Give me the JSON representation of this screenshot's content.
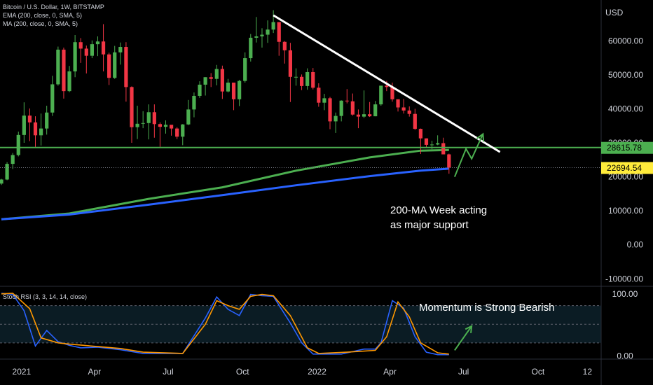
{
  "legend": {
    "title": "Bitcoin / U.S. Dollar, 1W, BITSTAMP",
    "ema": "EMA (200, close, 0, SMA, 5)",
    "ma": "MA (200, close, 0, SMA, 5)",
    "stoch": "Stoch RSI (3, 3, 14, 14, close)"
  },
  "currency_label": "USD",
  "annotations": {
    "support_line1": "200-MA Week acting",
    "support_line2": "as major support",
    "momentum": "Momentum is Strong Bearish"
  },
  "colors": {
    "up": "#4caf50",
    "down": "#f23645",
    "ema": "#4caf50",
    "ma": "#2962ff",
    "stoch_k": "#2962ff",
    "stoch_d": "#ff9800",
    "support_level": "#4caf50",
    "price_badge": "#ffeb3b",
    "trendline": "#ffffff"
  },
  "chart_data": [
    {
      "type": "candlestick",
      "title": "Bitcoin / U.S. Dollar, 1W, BITSTAMP",
      "ylabel": "USD",
      "ylim": [
        -12000,
        72000
      ],
      "xlim": [
        "2020-12-07",
        "2022-12-18"
      ],
      "y_ticks": [
        "60000.00",
        "50000.00",
        "40000.00",
        "30000.00",
        "20000.00",
        "10000.00",
        "0.00",
        "-10000.00"
      ],
      "x_ticks": [
        "2021",
        "Apr",
        "Jul",
        "Oct",
        "2022",
        "Apr",
        "Jul",
        "Oct",
        "12"
      ],
      "price_labels": [
        {
          "value": 28615.78,
          "text": "28615.78",
          "color": "#4caf50"
        },
        {
          "value": 22694.54,
          "text": "22694.54",
          "color": "#ffeb3b"
        }
      ],
      "horizontal_level": 28615.78,
      "trendline": {
        "from": [
          "2021-11-08",
          67500
        ],
        "to": [
          "2022-08-15",
          27300
        ]
      },
      "arrow_path": [
        [
          "2022-06-20",
          20000
        ],
        [
          "2022-07-04",
          28200
        ],
        [
          "2022-07-11",
          25300
        ],
        [
          "2022-07-25",
          32600
        ]
      ],
      "candles": [
        {
          "d": "2020-12-07",
          "o": 18000,
          "h": 19400,
          "l": 17600,
          "c": 19200
        },
        {
          "d": "2020-12-14",
          "o": 19200,
          "h": 24300,
          "l": 19000,
          "c": 23800
        },
        {
          "d": "2020-12-21",
          "o": 23800,
          "h": 27000,
          "l": 22300,
          "c": 26400
        },
        {
          "d": "2020-12-28",
          "o": 26400,
          "h": 33300,
          "l": 26000,
          "c": 32300
        },
        {
          "d": "2021-01-04",
          "o": 32300,
          "h": 41900,
          "l": 30000,
          "c": 38000
        },
        {
          "d": "2021-01-11",
          "o": 38000,
          "h": 40100,
          "l": 30500,
          "c": 36000
        },
        {
          "d": "2021-01-18",
          "o": 36000,
          "h": 37800,
          "l": 28800,
          "c": 32200
        },
        {
          "d": "2021-01-25",
          "o": 32200,
          "h": 38600,
          "l": 29200,
          "c": 34200
        },
        {
          "d": "2021-02-01",
          "o": 34200,
          "h": 40900,
          "l": 32400,
          "c": 38900
        },
        {
          "d": "2021-02-08",
          "o": 38900,
          "h": 49700,
          "l": 37900,
          "c": 47200
        },
        {
          "d": "2021-02-15",
          "o": 47200,
          "h": 58300,
          "l": 46800,
          "c": 57400
        },
        {
          "d": "2021-02-22",
          "o": 57400,
          "h": 58000,
          "l": 43000,
          "c": 45200
        },
        {
          "d": "2021-03-01",
          "o": 45200,
          "h": 52600,
          "l": 44900,
          "c": 51000
        },
        {
          "d": "2021-03-08",
          "o": 51000,
          "h": 61700,
          "l": 49300,
          "c": 59600
        },
        {
          "d": "2021-03-15",
          "o": 59600,
          "h": 60800,
          "l": 53500,
          "c": 57700
        },
        {
          "d": "2021-03-22",
          "o": 57700,
          "h": 58600,
          "l": 50400,
          "c": 55600
        },
        {
          "d": "2021-03-29",
          "o": 55600,
          "h": 60100,
          "l": 54900,
          "c": 59000
        },
        {
          "d": "2021-04-05",
          "o": 59000,
          "h": 61300,
          "l": 55500,
          "c": 59800
        },
        {
          "d": "2021-04-12",
          "o": 59800,
          "h": 64900,
          "l": 51000,
          "c": 56000
        },
        {
          "d": "2021-04-19",
          "o": 56000,
          "h": 56500,
          "l": 47000,
          "c": 49100
        },
        {
          "d": "2021-04-26",
          "o": 49100,
          "h": 58500,
          "l": 48800,
          "c": 56600
        },
        {
          "d": "2021-05-03",
          "o": 56600,
          "h": 59500,
          "l": 53000,
          "c": 58200
        },
        {
          "d": "2021-05-10",
          "o": 58200,
          "h": 59600,
          "l": 42100,
          "c": 46400
        },
        {
          "d": "2021-05-17",
          "o": 46400,
          "h": 46600,
          "l": 30000,
          "c": 34600
        },
        {
          "d": "2021-05-24",
          "o": 34600,
          "h": 40900,
          "l": 31100,
          "c": 35600
        },
        {
          "d": "2021-05-31",
          "o": 35600,
          "h": 39300,
          "l": 34300,
          "c": 35800
        },
        {
          "d": "2021-06-07",
          "o": 35800,
          "h": 41300,
          "l": 31000,
          "c": 39000
        },
        {
          "d": "2021-06-14",
          "o": 39000,
          "h": 41300,
          "l": 31500,
          "c": 35500
        },
        {
          "d": "2021-06-21",
          "o": 35500,
          "h": 36000,
          "l": 28800,
          "c": 34700
        },
        {
          "d": "2021-06-28",
          "o": 34700,
          "h": 36600,
          "l": 32700,
          "c": 35300
        },
        {
          "d": "2021-07-05",
          "o": 35300,
          "h": 35100,
          "l": 32100,
          "c": 34200
        },
        {
          "d": "2021-07-12",
          "o": 34200,
          "h": 34600,
          "l": 31100,
          "c": 31800
        },
        {
          "d": "2021-07-19",
          "o": 31800,
          "h": 35500,
          "l": 29300,
          "c": 35400
        },
        {
          "d": "2021-07-26",
          "o": 35400,
          "h": 42600,
          "l": 35200,
          "c": 39800
        },
        {
          "d": "2021-08-02",
          "o": 39800,
          "h": 44800,
          "l": 37500,
          "c": 43800
        },
        {
          "d": "2021-08-09",
          "o": 43800,
          "h": 48100,
          "l": 43200,
          "c": 47100
        },
        {
          "d": "2021-08-16",
          "o": 47100,
          "h": 49300,
          "l": 43900,
          "c": 49300
        },
        {
          "d": "2021-08-23",
          "o": 49300,
          "h": 50500,
          "l": 46400,
          "c": 48800
        },
        {
          "d": "2021-08-30",
          "o": 48800,
          "h": 52900,
          "l": 46900,
          "c": 51700
        },
        {
          "d": "2021-09-06",
          "o": 51700,
          "h": 52700,
          "l": 42900,
          "c": 45100
        },
        {
          "d": "2021-09-13",
          "o": 45100,
          "h": 48800,
          "l": 44800,
          "c": 47700
        },
        {
          "d": "2021-09-20",
          "o": 47700,
          "h": 47700,
          "l": 39600,
          "c": 42800
        },
        {
          "d": "2021-09-27",
          "o": 42800,
          "h": 48500,
          "l": 40800,
          "c": 48200
        },
        {
          "d": "2021-10-04",
          "o": 48200,
          "h": 56600,
          "l": 47700,
          "c": 54900
        },
        {
          "d": "2021-10-11",
          "o": 54900,
          "h": 62000,
          "l": 53900,
          "c": 60900
        },
        {
          "d": "2021-10-18",
          "o": 60900,
          "h": 67000,
          "l": 59500,
          "c": 61300
        },
        {
          "d": "2021-10-25",
          "o": 61300,
          "h": 63700,
          "l": 58000,
          "c": 61800
        },
        {
          "d": "2021-11-01",
          "o": 61800,
          "h": 66000,
          "l": 59400,
          "c": 63300
        },
        {
          "d": "2021-11-08",
          "o": 63300,
          "h": 69000,
          "l": 62300,
          "c": 65500
        },
        {
          "d": "2021-11-15",
          "o": 65500,
          "h": 65500,
          "l": 55600,
          "c": 59700
        },
        {
          "d": "2021-11-22",
          "o": 59700,
          "h": 59900,
          "l": 53300,
          "c": 57200
        },
        {
          "d": "2021-11-29",
          "o": 57200,
          "h": 59400,
          "l": 42000,
          "c": 49400
        },
        {
          "d": "2021-12-06",
          "o": 49400,
          "h": 51900,
          "l": 46800,
          "c": 49400
        },
        {
          "d": "2021-12-13",
          "o": 49400,
          "h": 50100,
          "l": 45500,
          "c": 46700
        },
        {
          "d": "2021-12-20",
          "o": 46700,
          "h": 51900,
          "l": 45600,
          "c": 50800
        },
        {
          "d": "2021-12-27",
          "o": 50800,
          "h": 52000,
          "l": 45700,
          "c": 46200
        },
        {
          "d": "2022-01-03",
          "o": 46200,
          "h": 47500,
          "l": 40600,
          "c": 41800
        },
        {
          "d": "2022-01-10",
          "o": 41800,
          "h": 44400,
          "l": 39600,
          "c": 43100
        },
        {
          "d": "2022-01-17",
          "o": 43100,
          "h": 43500,
          "l": 34000,
          "c": 36300
        },
        {
          "d": "2022-01-24",
          "o": 36300,
          "h": 38900,
          "l": 32900,
          "c": 37900
        },
        {
          "d": "2022-01-31",
          "o": 37900,
          "h": 42500,
          "l": 36300,
          "c": 42400
        },
        {
          "d": "2022-02-07",
          "o": 42400,
          "h": 45800,
          "l": 41600,
          "c": 42200
        },
        {
          "d": "2022-02-14",
          "o": 42200,
          "h": 44500,
          "l": 38000,
          "c": 38300
        },
        {
          "d": "2022-02-21",
          "o": 38300,
          "h": 39800,
          "l": 34300,
          "c": 37700
        },
        {
          "d": "2022-02-28",
          "o": 37700,
          "h": 45400,
          "l": 37300,
          "c": 38400
        },
        {
          "d": "2022-03-07",
          "o": 38400,
          "h": 42000,
          "l": 37600,
          "c": 37800
        },
        {
          "d": "2022-03-14",
          "o": 37800,
          "h": 42300,
          "l": 37800,
          "c": 41300
        },
        {
          "d": "2022-03-21",
          "o": 41300,
          "h": 46800,
          "l": 40900,
          "c": 46800
        },
        {
          "d": "2022-03-28",
          "o": 46800,
          "h": 48200,
          "l": 45200,
          "c": 46400
        },
        {
          "d": "2022-04-04",
          "o": 46400,
          "h": 47700,
          "l": 42100,
          "c": 42800
        },
        {
          "d": "2022-04-11",
          "o": 42800,
          "h": 42400,
          "l": 39200,
          "c": 40400
        },
        {
          "d": "2022-04-18",
          "o": 40400,
          "h": 42900,
          "l": 38600,
          "c": 39500
        },
        {
          "d": "2022-04-25",
          "o": 39500,
          "h": 40700,
          "l": 37700,
          "c": 38500
        },
        {
          "d": "2022-05-02",
          "o": 38500,
          "h": 40000,
          "l": 33800,
          "c": 34100
        },
        {
          "d": "2022-05-09",
          "o": 34100,
          "h": 34200,
          "l": 26700,
          "c": 31300
        },
        {
          "d": "2022-05-16",
          "o": 31300,
          "h": 31300,
          "l": 28700,
          "c": 29400
        },
        {
          "d": "2022-05-23",
          "o": 29400,
          "h": 30600,
          "l": 28100,
          "c": 29500
        },
        {
          "d": "2022-05-30",
          "o": 29500,
          "h": 32200,
          "l": 29300,
          "c": 29900
        },
        {
          "d": "2022-06-06",
          "o": 29900,
          "h": 31500,
          "l": 26600,
          "c": 26600
        },
        {
          "d": "2022-06-13",
          "o": 26600,
          "h": 26800,
          "l": 20900,
          "c": 22700
        }
      ],
      "ema200_points": [
        [
          "2020-12-07",
          7500
        ],
        [
          "2021-03-01",
          9200
        ],
        [
          "2021-06-07",
          13500
        ],
        [
          "2021-09-06",
          16900
        ],
        [
          "2021-12-06",
          21800
        ],
        [
          "2022-03-07",
          25700
        ],
        [
          "2022-05-09",
          27700
        ],
        [
          "2022-06-13",
          27900
        ]
      ],
      "ma200_points": [
        [
          "2020-12-07",
          7500
        ],
        [
          "2021-03-01",
          8900
        ],
        [
          "2021-06-07",
          11800
        ],
        [
          "2021-09-06",
          14600
        ],
        [
          "2021-12-06",
          17500
        ],
        [
          "2022-03-07",
          20200
        ],
        [
          "2022-05-09",
          21800
        ],
        [
          "2022-06-13",
          22400
        ]
      ]
    },
    {
      "type": "line",
      "title": "Stoch RSI (3, 3, 14, 14, close)",
      "ylim": [
        -5,
        110
      ],
      "y_ticks": [
        "100.00",
        "0.00"
      ],
      "bands": [
        20,
        50,
        80
      ],
      "series": [
        {
          "name": "K",
          "color": "#2962ff",
          "points": [
            [
              "2020-12-07",
              100
            ],
            [
              "2020-12-21",
              98
            ],
            [
              "2021-01-04",
              72
            ],
            [
              "2021-01-18",
              15
            ],
            [
              "2021-02-01",
              40
            ],
            [
              "2021-02-15",
              22
            ],
            [
              "2021-03-01",
              16
            ],
            [
              "2021-03-15",
              12
            ],
            [
              "2021-04-05",
              13
            ],
            [
              "2021-05-03",
              9
            ],
            [
              "2021-05-31",
              3
            ],
            [
              "2021-06-21",
              3
            ],
            [
              "2021-07-19",
              3
            ],
            [
              "2021-08-16",
              60
            ],
            [
              "2021-08-30",
              94
            ],
            [
              "2021-09-13",
              74
            ],
            [
              "2021-09-27",
              64
            ],
            [
              "2021-10-11",
              98
            ],
            [
              "2021-10-25",
              96
            ],
            [
              "2021-11-08",
              95
            ],
            [
              "2021-11-29",
              52
            ],
            [
              "2021-12-13",
              20
            ],
            [
              "2021-12-27",
              2
            ],
            [
              "2022-01-31",
              2
            ],
            [
              "2022-02-28",
              10
            ],
            [
              "2022-03-14",
              10
            ],
            [
              "2022-03-21",
              20
            ],
            [
              "2022-04-04",
              88
            ],
            [
              "2022-04-18",
              76
            ],
            [
              "2022-05-02",
              30
            ],
            [
              "2022-05-16",
              5
            ],
            [
              "2022-05-30",
              1
            ],
            [
              "2022-06-13",
              1
            ]
          ]
        },
        {
          "name": "D",
          "color": "#ff9800",
          "points": [
            [
              "2020-12-07",
              99
            ],
            [
              "2020-12-21",
              100
            ],
            [
              "2021-01-11",
              75
            ],
            [
              "2021-01-25",
              28
            ],
            [
              "2021-02-15",
              20
            ],
            [
              "2021-03-01",
              18
            ],
            [
              "2021-04-05",
              14
            ],
            [
              "2021-05-03",
              11
            ],
            [
              "2021-05-31",
              5
            ],
            [
              "2021-07-19",
              3
            ],
            [
              "2021-08-16",
              50
            ],
            [
              "2021-08-30",
              88
            ],
            [
              "2021-09-13",
              80
            ],
            [
              "2021-09-27",
              74
            ],
            [
              "2021-10-11",
              95
            ],
            [
              "2021-10-25",
              98
            ],
            [
              "2021-11-08",
              96
            ],
            [
              "2021-11-29",
              64
            ],
            [
              "2021-12-20",
              12
            ],
            [
              "2022-01-03",
              3
            ],
            [
              "2022-02-07",
              5
            ],
            [
              "2022-03-14",
              8
            ],
            [
              "2022-03-28",
              30
            ],
            [
              "2022-04-11",
              86
            ],
            [
              "2022-04-25",
              62
            ],
            [
              "2022-05-09",
              20
            ],
            [
              "2022-05-30",
              4
            ],
            [
              "2022-06-13",
              2
            ]
          ]
        }
      ]
    }
  ]
}
